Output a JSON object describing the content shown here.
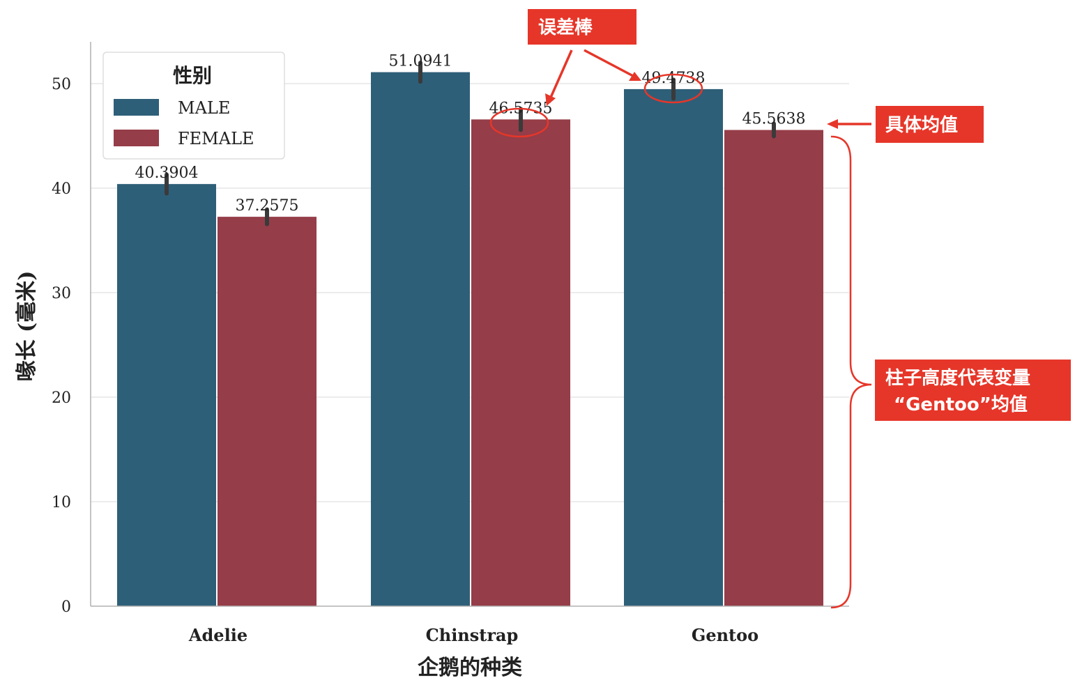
{
  "chart_data": {
    "type": "bar",
    "categories": [
      "Adelie",
      "Chinstrap",
      "Gentoo"
    ],
    "series": [
      {
        "name": "MALE",
        "values": [
          40.3904,
          51.0941,
          49.4738
        ],
        "errors": [
          0.9,
          0.9,
          0.9
        ]
      },
      {
        "name": "FEMALE",
        "values": [
          37.2575,
          46.5735,
          45.5638
        ],
        "errors": [
          0.7,
          1.0,
          0.6
        ]
      }
    ],
    "value_labels": [
      [
        "40.3904",
        "51.0941",
        "49.4738"
      ],
      [
        "37.2575",
        "46.5735",
        "45.5638"
      ]
    ],
    "xlabel": "企鹅的种类",
    "ylabel": "喙长 (毫米)",
    "ylim": [
      0,
      54
    ],
    "yticks": [
      0,
      10,
      20,
      30,
      40,
      50
    ],
    "grid": "horizontal",
    "legend": {
      "title": "性别",
      "placement": "top-left"
    },
    "colors": {
      "MALE": "#2e5f78",
      "FEMALE": "#953d48",
      "errorbar": "#3a3a3a",
      "grid": "#ececec",
      "axis": "#b0b0b0"
    }
  },
  "annotations": {
    "error_bar_label": "误差棒",
    "mean_value_label": "具体均值",
    "bar_height_line1": "柱子高度代表变量",
    "bar_height_line2": "“Gentoo”均值",
    "color": "#e63629"
  }
}
